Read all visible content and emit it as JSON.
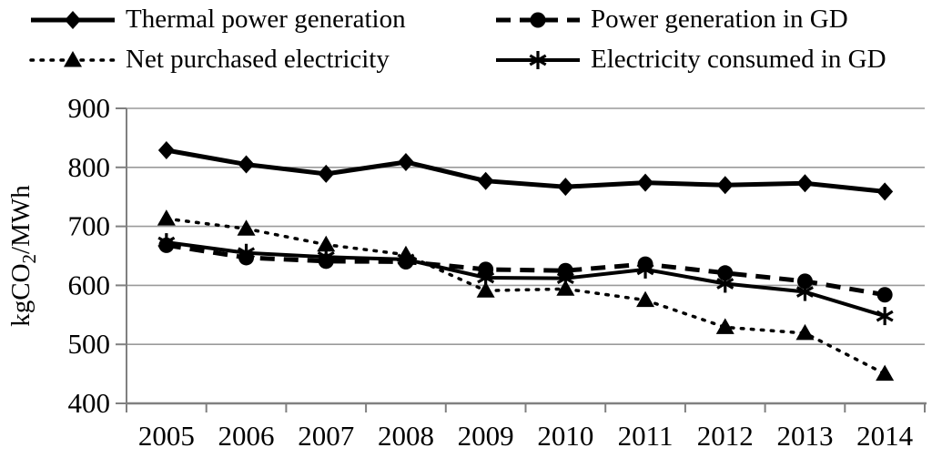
{
  "chart_data": {
    "type": "line",
    "title": "",
    "xlabel": "",
    "ylabel": "kgCO2/MWh",
    "ylabel_parts": {
      "pre": "kgCO",
      "sub": "2",
      "post": "/MWh"
    },
    "ylim": [
      400,
      900
    ],
    "ytick_step": 100,
    "yticks": [
      "900",
      "800",
      "700",
      "600",
      "500",
      "400"
    ],
    "grid": "horizontal",
    "legend_position": "top-two-columns",
    "categories": [
      "2005",
      "2006",
      "2007",
      "2008",
      "2009",
      "2010",
      "2011",
      "2012",
      "2013",
      "2014"
    ],
    "series": [
      {
        "name": "Thermal power generation",
        "marker": "diamond",
        "line": "solid-thick",
        "color": "#000000",
        "values": [
          829,
          805,
          789,
          809,
          777,
          767,
          774,
          770,
          773,
          759
        ]
      },
      {
        "name": "Power generation in GD",
        "marker": "circle",
        "line": "dashed",
        "color": "#000000",
        "values": [
          668,
          647,
          641,
          640,
          627,
          625,
          636,
          621,
          607,
          584
        ]
      },
      {
        "name": "Net purchased electricity",
        "marker": "triangle",
        "line": "dotted",
        "color": "#000000",
        "values": [
          713,
          696,
          669,
          652,
          591,
          594,
          575,
          529,
          519,
          450
        ]
      },
      {
        "name": "Electricity consumed in GD",
        "marker": "asterisk",
        "line": "solid",
        "color": "#000000",
        "values": [
          673,
          655,
          648,
          644,
          613,
          612,
          627,
          603,
          589,
          548
        ]
      }
    ],
    "axis_color": "#808080",
    "grid_color": "#9a9a9a",
    "text_color": "#000000"
  }
}
